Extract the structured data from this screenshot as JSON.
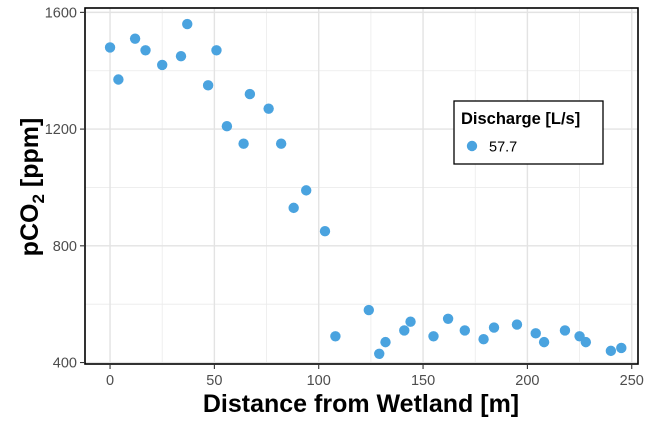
{
  "chart_data": {
    "type": "scatter",
    "xlabel": "Distance from Wetland [m]",
    "ylabel_main": "pCO",
    "ylabel_sub": "2",
    "ylabel_unit": " [ppm]",
    "xlim": [
      -12,
      253
    ],
    "ylim": [
      395,
      1615
    ],
    "x_ticks": [
      0,
      50,
      100,
      150,
      200,
      250
    ],
    "y_ticks": [
      400,
      800,
      1200,
      1600
    ],
    "x_tick_labels": [
      "0",
      "50",
      "100",
      "150",
      "200",
      "250"
    ],
    "y_tick_labels": [
      "400",
      "800",
      "1200",
      "1600"
    ],
    "grid": true,
    "legend": {
      "title": "Discharge [L/s]",
      "placement": "right",
      "entries": [
        {
          "label": "57.7",
          "color": "#4aa3df"
        }
      ]
    },
    "series": [
      {
        "name": "57.7",
        "color": "#4aa3df",
        "points": [
          [
            0,
            1480
          ],
          [
            4,
            1370
          ],
          [
            12,
            1510
          ],
          [
            17,
            1470
          ],
          [
            25,
            1420
          ],
          [
            34,
            1450
          ],
          [
            37,
            1560
          ],
          [
            47,
            1350
          ],
          [
            51,
            1470
          ],
          [
            56,
            1210
          ],
          [
            64,
            1150
          ],
          [
            67,
            1320
          ],
          [
            76,
            1270
          ],
          [
            82,
            1150
          ],
          [
            88,
            930
          ],
          [
            94,
            990
          ],
          [
            103,
            850
          ],
          [
            108,
            490
          ],
          [
            124,
            580
          ],
          [
            129,
            430
          ],
          [
            132,
            470
          ],
          [
            141,
            510
          ],
          [
            144,
            540
          ],
          [
            155,
            490
          ],
          [
            162,
            550
          ],
          [
            170,
            510
          ],
          [
            179,
            480
          ],
          [
            184,
            520
          ],
          [
            195,
            530
          ],
          [
            204,
            500
          ],
          [
            208,
            470
          ],
          [
            218,
            510
          ],
          [
            225,
            490
          ],
          [
            228,
            470
          ],
          [
            240,
            440
          ],
          [
            245,
            450
          ]
        ]
      }
    ]
  }
}
